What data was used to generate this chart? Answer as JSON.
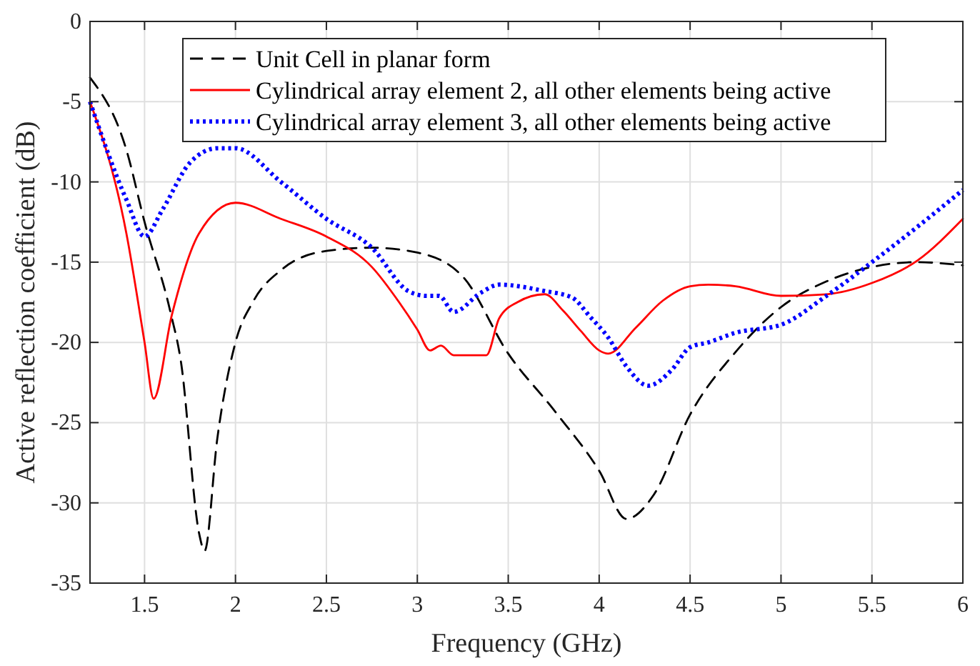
{
  "chart_data": {
    "type": "line",
    "xlabel": "Frequency (GHz)",
    "ylabel": "Active reflection coefficient (dB)",
    "xlim": [
      1.2,
      6
    ],
    "ylim": [
      -35,
      0
    ],
    "xticks": [
      1.5,
      2,
      2.5,
      3,
      3.5,
      4,
      4.5,
      5,
      5.5,
      6
    ],
    "yticks": [
      -35,
      -30,
      -25,
      -20,
      -15,
      -10,
      -5,
      0
    ],
    "grid": true,
    "legend": "top",
    "series": [
      {
        "name": "Unit Cell in planar form",
        "color": "#000000",
        "line_style": "dashed",
        "x": [
          1.2,
          1.4,
          1.5,
          1.64,
          1.7,
          1.8,
          1.83,
          1.9,
          2.0,
          2.1,
          2.25,
          2.5,
          2.75,
          3.0,
          3.25,
          3.5,
          3.75,
          4.0,
          4.15,
          4.3,
          4.5,
          4.75,
          5.0,
          5.25,
          5.5,
          5.75,
          6.0
        ],
        "values": [
          -3.5,
          -8,
          -12.5,
          -18,
          -21.2,
          -31.9,
          -33,
          -26,
          -20,
          -17.4,
          -15.5,
          -14.3,
          -14.1,
          -14.4,
          -15.9,
          -20.7,
          -24.2,
          -28,
          -31,
          -29.5,
          -24.5,
          -20.6,
          -17.8,
          -16.2,
          -15.3,
          -15,
          -15.2
        ]
      },
      {
        "name": "Cylindrical array element 2, all other elements being active",
        "color": "#ff0000",
        "line_style": "solid",
        "x": [
          1.2,
          1.4,
          1.5,
          1.55,
          1.65,
          1.8,
          2.0,
          2.25,
          2.5,
          2.75,
          2.9,
          3.0,
          3.07,
          3.13,
          3.2,
          3.3,
          3.38,
          3.45,
          3.55,
          3.7,
          3.8,
          3.9,
          4.0,
          4.05,
          4.2,
          4.35,
          4.5,
          4.6,
          4.75,
          5.0,
          5.25,
          5.5,
          5.75,
          6.0
        ],
        "values": [
          -5,
          -13.2,
          -20,
          -23.5,
          -18.3,
          -13.2,
          -11.3,
          -12.3,
          -13.4,
          -15.3,
          -17.5,
          -19.2,
          -20.5,
          -20.2,
          -20.8,
          -20.8,
          -20.8,
          -18.5,
          -17.5,
          -17,
          -18,
          -19.3,
          -20.5,
          -20.7,
          -19.1,
          -17.4,
          -16.5,
          -16.4,
          -16.5,
          -17.1,
          -17,
          -16.3,
          -14.9,
          -12.3
        ]
      },
      {
        "name": "Cylindrical array element 3, all other elements being active",
        "color": "#0000ff",
        "line_style": "dotted",
        "x": [
          1.2,
          1.4,
          1.5,
          1.6,
          1.75,
          1.9,
          2.0,
          2.25,
          2.5,
          2.75,
          2.95,
          3.05,
          3.12,
          3.2,
          3.35,
          3.45,
          3.7,
          3.85,
          3.95,
          4.05,
          4.15,
          4.27,
          4.4,
          4.5,
          4.6,
          4.75,
          5.0,
          5.25,
          5.5,
          5.75,
          6.0
        ],
        "values": [
          -5,
          -11.1,
          -13.4,
          -11.7,
          -8.8,
          -7.9,
          -7.9,
          -10,
          -12.3,
          -14.1,
          -16.8,
          -17.1,
          -17.1,
          -18.1,
          -16.9,
          -16.4,
          -16.8,
          -17.2,
          -18.4,
          -19.7,
          -21.5,
          -22.7,
          -21.7,
          -20.3,
          -20,
          -19.4,
          -18.9,
          -17.1,
          -15,
          -12.8,
          -10.5
        ]
      }
    ]
  }
}
